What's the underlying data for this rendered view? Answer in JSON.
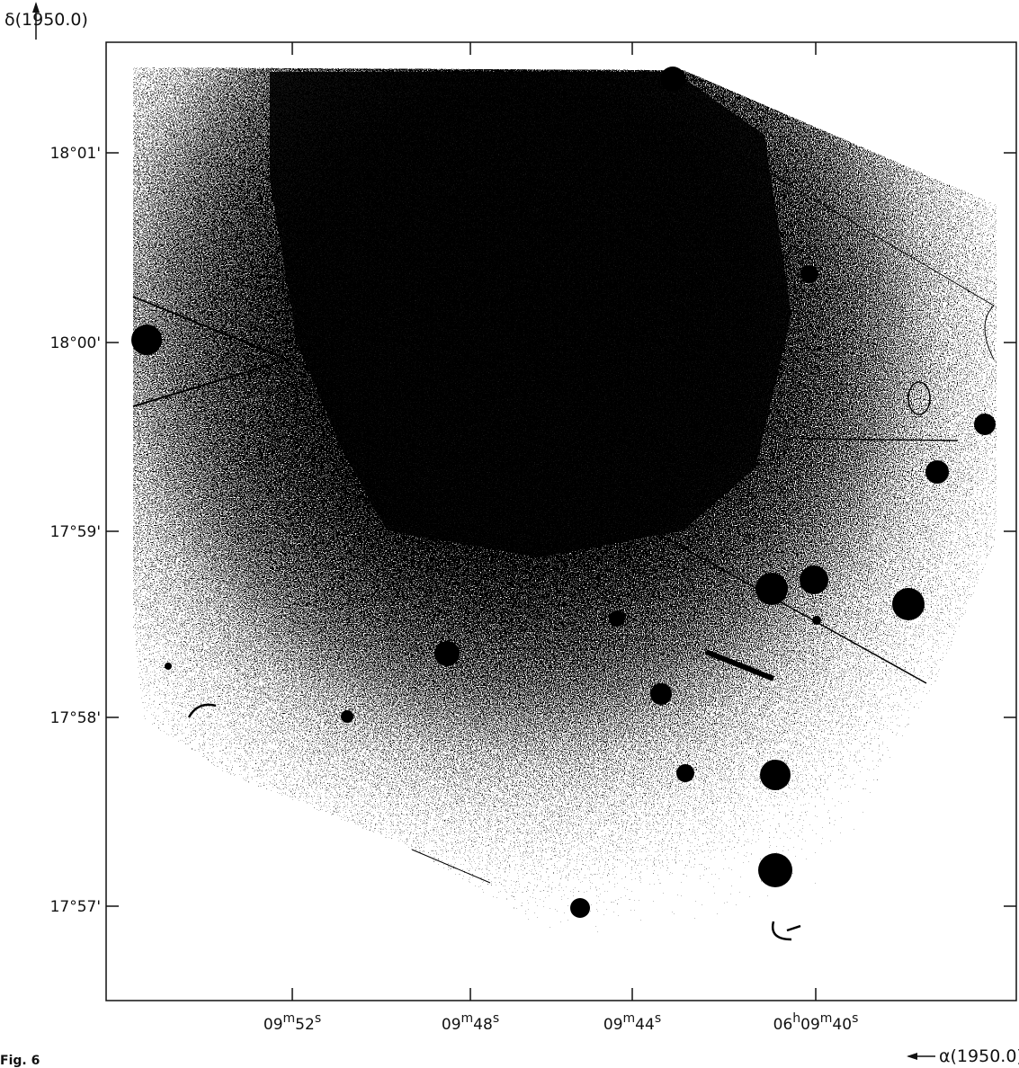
{
  "figure": {
    "y_axis_label": "δ(1950.0)",
    "x_axis_label": "α(1950.0)",
    "y_ticks": [
      "18°01'",
      "18°00'",
      "17°59'",
      "17°58'",
      "17°57'"
    ],
    "x_ticks": [
      {
        "parts": [
          "09",
          "m",
          "52",
          "s"
        ]
      },
      {
        "parts": [
          "09",
          "m",
          "48",
          "s"
        ]
      },
      {
        "parts": [
          "09",
          "m",
          "44",
          "s"
        ]
      },
      {
        "parts": [
          "06",
          "h",
          "09",
          "m",
          "40",
          "s"
        ]
      }
    ],
    "caption": "Fig. 6"
  }
}
